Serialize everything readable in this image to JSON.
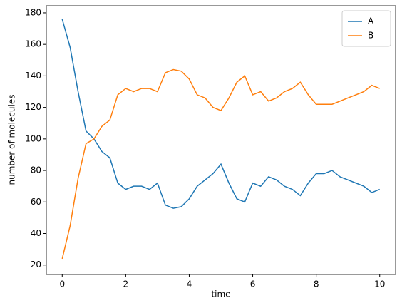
{
  "chart_data": {
    "type": "line",
    "xlabel": "time",
    "ylabel": "number of molecules",
    "x": [
      0,
      0.25,
      0.5,
      0.75,
      1,
      1.25,
      1.5,
      1.75,
      2,
      2.25,
      2.5,
      2.75,
      3,
      3.25,
      3.5,
      3.75,
      4,
      4.25,
      4.5,
      4.75,
      5,
      5.25,
      5.5,
      5.75,
      6,
      6.25,
      6.5,
      6.75,
      7,
      7.25,
      7.5,
      7.75,
      8,
      8.25,
      8.5,
      8.75,
      9,
      9.25,
      9.5,
      9.75,
      10
    ],
    "series": [
      {
        "name": "A",
        "color": "#1f77b4",
        "values": [
          176,
          158,
          130,
          105,
          100,
          92,
          88,
          72,
          68,
          70,
          70,
          68,
          72,
          58,
          56,
          57,
          62,
          70,
          74,
          78,
          84,
          72,
          62,
          60,
          72,
          70,
          76,
          74,
          70,
          68,
          64,
          72,
          78,
          78,
          80,
          76,
          74,
          72,
          70,
          66,
          68
        ]
      },
      {
        "name": "B",
        "color": "#ff7f0e",
        "values": [
          24,
          45,
          75,
          97,
          100,
          108,
          112,
          128,
          132,
          130,
          132,
          132,
          130,
          142,
          144,
          143,
          138,
          128,
          126,
          120,
          118,
          126,
          136,
          140,
          128,
          130,
          124,
          126,
          130,
          132,
          136,
          128,
          122,
          122,
          122,
          124,
          126,
          128,
          130,
          134,
          132
        ]
      }
    ],
    "xlim": [
      -0.5,
      10.5
    ],
    "xticks": [
      0,
      2,
      4,
      6,
      8,
      10
    ],
    "ylim": [
      14,
      184.5
    ],
    "yticks": [
      20,
      40,
      60,
      80,
      100,
      120,
      140,
      160,
      180
    ],
    "legend": "upper right"
  }
}
